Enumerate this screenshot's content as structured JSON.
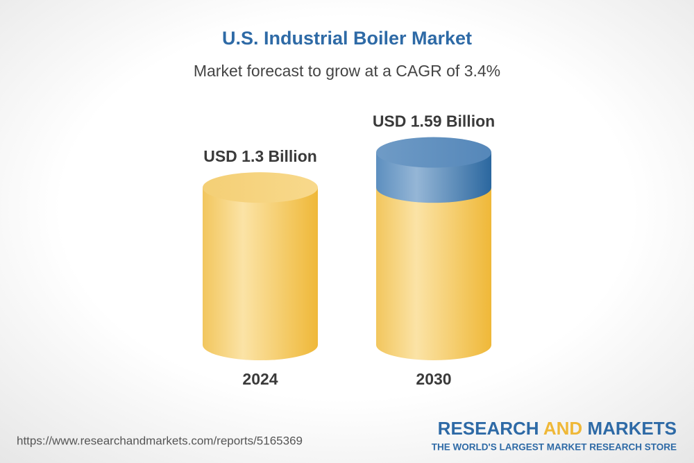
{
  "chart_data": {
    "type": "cylinder",
    "title": "U.S. Industrial Boiler Market",
    "subtitle": "Market forecast to grow at a CAGR of 3.4%",
    "categories": [
      "2024",
      "2030"
    ],
    "values": [
      1.3,
      1.59
    ],
    "value_labels": [
      "USD 1.3 Billion",
      "USD 1.59 Billion"
    ]
  },
  "footer": {
    "url": "https://www.researchandmarkets.com/reports/5165369",
    "brand": [
      "RESEARCH",
      "AND",
      "MARKETS"
    ],
    "tagline": "THE WORLD'S LARGEST MARKET RESEARCH STORE"
  }
}
